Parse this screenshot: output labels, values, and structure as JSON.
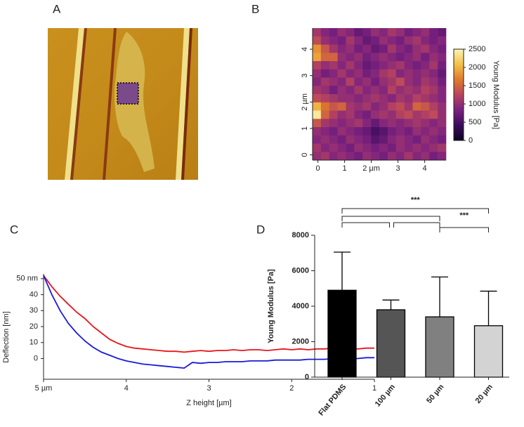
{
  "panels": [
    "A",
    "B",
    "C",
    "D"
  ],
  "chart_data": [
    {
      "type": "heatmap",
      "colorbar_label": "Young Modulus [Pa]",
      "xlim": [
        -0.2,
        4.8
      ],
      "ylim": [
        -0.2,
        4.8
      ],
      "xticks": [
        0,
        1,
        {
          "value": 2,
          "label": "2 µm"
        },
        3,
        4
      ],
      "yticks": [
        0,
        1,
        {
          "value": 2,
          "label": "2 µm"
        },
        3,
        4
      ],
      "zlim": [
        0,
        2500
      ],
      "zticks": [
        0,
        500,
        1000,
        1500,
        2000,
        2500
      ],
      "colormap": [
        "#0d0421",
        "#3b0b5c",
        "#7a2180",
        "#b8445e",
        "#e07b2a",
        "#f4c04a",
        "#fcf6b4"
      ],
      "values": [
        [
          1100,
          900,
          800,
          1000,
          900,
          700,
          800,
          1000,
          900,
          1100,
          1000,
          800,
          900,
          1000,
          800,
          700
        ],
        [
          1300,
          1000,
          900,
          800,
          1100,
          900,
          700,
          800,
          1000,
          900,
          800,
          1000,
          1100,
          900,
          800,
          900
        ],
        [
          1800,
          1400,
          1100,
          900,
          1000,
          800,
          900,
          700,
          800,
          1100,
          900,
          800,
          1000,
          1100,
          900,
          800
        ],
        [
          1900,
          1500,
          1500,
          1000,
          900,
          1000,
          800,
          900,
          1000,
          900,
          800,
          900,
          1000,
          800,
          1000,
          900
        ],
        [
          1200,
          1000,
          1100,
          900,
          1100,
          900,
          700,
          800,
          900,
          1000,
          1100,
          900,
          800,
          900,
          1100,
          800
        ],
        [
          1000,
          800,
          900,
          1100,
          900,
          1000,
          800,
          900,
          1100,
          1200,
          900,
          1000,
          900,
          1000,
          900,
          700
        ],
        [
          900,
          1100,
          1000,
          900,
          1200,
          900,
          1000,
          800,
          1000,
          1100,
          1300,
          1000,
          900,
          1100,
          1000,
          800
        ],
        [
          1100,
          1000,
          800,
          1000,
          900,
          1100,
          900,
          1000,
          900,
          1200,
          1000,
          1100,
          1000,
          1200,
          1100,
          900
        ],
        [
          1300,
          1200,
          1100,
          1000,
          1000,
          900,
          1000,
          1100,
          1000,
          900,
          1100,
          1000,
          1200,
          1100,
          1000,
          900
        ],
        [
          2000,
          1600,
          1400,
          1500,
          1100,
          1000,
          1100,
          900,
          1000,
          1200,
          1300,
          1100,
          1500,
          1400,
          1200,
          1000
        ],
        [
          2400,
          1500,
          1200,
          1000,
          1100,
          900,
          800,
          1000,
          1100,
          1000,
          1200,
          1300,
          1100,
          1200,
          1300,
          1000
        ],
        [
          1400,
          1100,
          1000,
          900,
          1000,
          1100,
          900,
          700,
          900,
          1000,
          900,
          1000,
          1100,
          1000,
          900,
          1000
        ],
        [
          1000,
          900,
          800,
          1000,
          900,
          800,
          700,
          500,
          600,
          800,
          900,
          800,
          1000,
          900,
          1000,
          900
        ],
        [
          900,
          1000,
          900,
          800,
          1000,
          900,
          800,
          600,
          700,
          900,
          1000,
          900,
          800,
          1000,
          900,
          800
        ],
        [
          1100,
          900,
          1000,
          900,
          800,
          1000,
          900,
          800,
          900,
          800,
          1000,
          900,
          1000,
          900,
          1000,
          1100
        ],
        [
          1000,
          1100,
          900,
          1000,
          900,
          800,
          1000,
          900,
          800,
          1000,
          900,
          1100,
          900,
          1000,
          800,
          900
        ]
      ]
    },
    {
      "type": "line",
      "xlabel": "Z height [µm]",
      "ylabel": "Deflection [nm]",
      "xlim": [
        5,
        1
      ],
      "ylim": [
        -13,
        53
      ],
      "xticks": [
        {
          "value": 5,
          "label": "5 µm"
        },
        4,
        3,
        2,
        1
      ],
      "yticks": [
        0,
        10,
        20,
        30,
        40,
        {
          "value": 50,
          "label": "50 nm"
        }
      ],
      "x": [
        5.0,
        4.9,
        4.8,
        4.7,
        4.6,
        4.5,
        4.4,
        4.3,
        4.2,
        4.1,
        4.0,
        3.9,
        3.8,
        3.7,
        3.6,
        3.5,
        3.4,
        3.3,
        3.2,
        3.1,
        3.0,
        2.9,
        2.8,
        2.7,
        2.6,
        2.5,
        2.4,
        2.3,
        2.2,
        2.1,
        2.0,
        1.9,
        1.8,
        1.7,
        1.6,
        1.5,
        1.4,
        1.3,
        1.2,
        1.1,
        1.0
      ],
      "series": [
        {
          "color": "#e8141a",
          "values": [
            52,
            45,
            39,
            34,
            29,
            25,
            20,
            16,
            12,
            9.5,
            7.5,
            6.5,
            6,
            5.5,
            5,
            4.5,
            4.5,
            4,
            4.5,
            5,
            4.5,
            5,
            5,
            5.5,
            5,
            5.5,
            5.5,
            5,
            5.5,
            6,
            5.5,
            6,
            5.5,
            6,
            6,
            6.5,
            6,
            6.5,
            6,
            6.5,
            6.5
          ]
        },
        {
          "color": "#1a1ad8",
          "values": [
            52,
            40,
            30,
            22,
            16,
            11,
            7,
            4,
            2,
            0,
            -1.5,
            -2.5,
            -3.5,
            -4,
            -4.5,
            -5,
            -5.5,
            -6,
            -2.5,
            -3,
            -2.5,
            -2.5,
            -2,
            -2,
            -2,
            -1.5,
            -1.5,
            -1.5,
            -1,
            -1,
            -1,
            -1,
            -0.5,
            -0.5,
            -0.5,
            0,
            0,
            0,
            0,
            0.5,
            0.5
          ]
        }
      ]
    },
    {
      "type": "bar",
      "ylabel": "Young Modulus [Pa]",
      "categories": [
        "Flat PDMS",
        "100 µm",
        "50 µm",
        "20 µm"
      ],
      "values": [
        4900,
        3800,
        3400,
        2900
      ],
      "errors": [
        2150,
        550,
        2250,
        1950
      ],
      "colors": [
        "#000000",
        "#555555",
        "#808080",
        "#d3d3d3"
      ],
      "ylim": [
        0,
        8000
      ],
      "yticks": [
        0,
        2000,
        4000,
        6000,
        8000
      ],
      "annotations": [
        "***",
        "***"
      ]
    }
  ]
}
